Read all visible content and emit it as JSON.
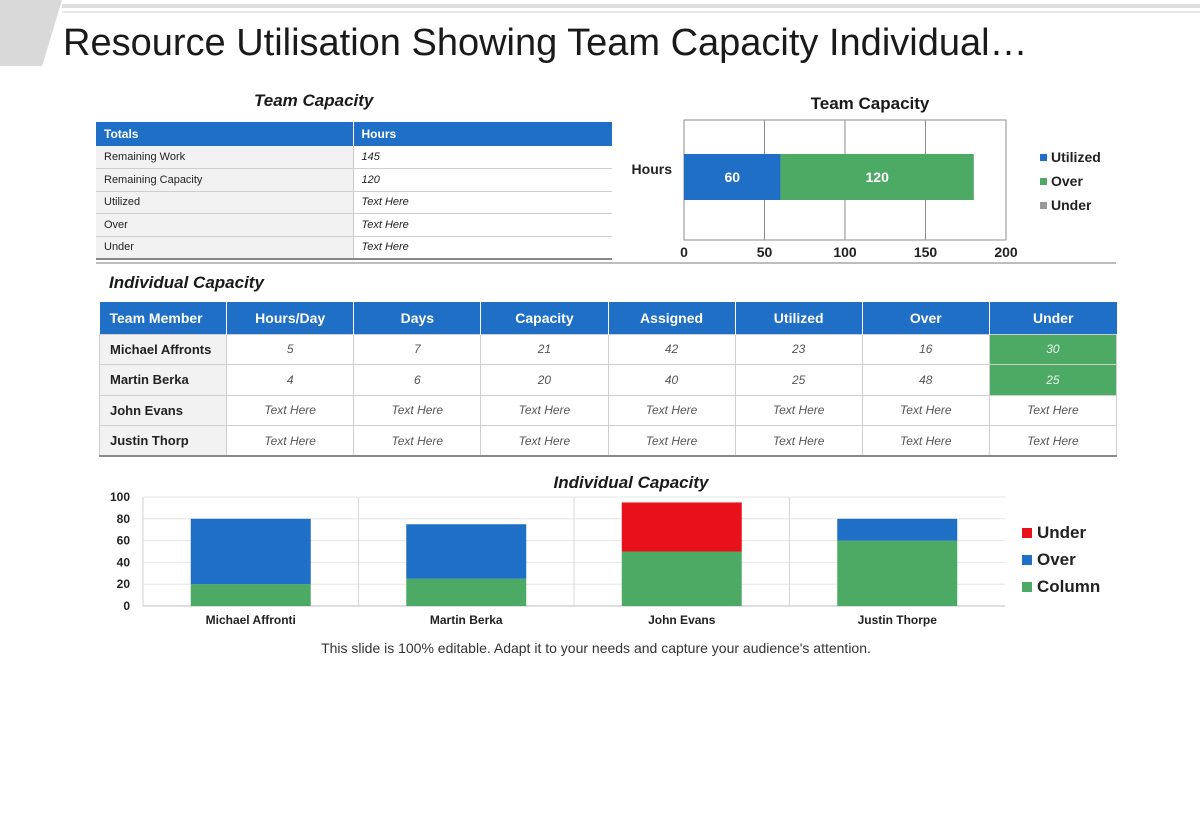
{
  "title": "Resource Utilisation Showing Team Capacity Individual…",
  "caption": "This slide is 100% editable. Adapt it to your needs and capture your audience's attention.",
  "colors": {
    "blue": "#1f6fc7",
    "green": "#4daa65",
    "red": "#e8101a",
    "gray": "#9a9a9a"
  },
  "totals_table": {
    "title": "Team Capacity",
    "headers": [
      "Totals",
      "Hours"
    ],
    "rows": [
      [
        "Remaining Work",
        "145"
      ],
      [
        "Remaining Capacity",
        "120"
      ],
      [
        "Utilized",
        "Text Here"
      ],
      [
        "Over",
        "Text Here"
      ],
      [
        "Under",
        "Text Here"
      ]
    ]
  },
  "individual_table": {
    "title": "Individual Capacity",
    "headers": [
      "Team Member",
      "Hours/Day",
      "Days",
      "Capacity",
      "Assigned",
      "Utilized",
      "Over",
      "Under"
    ],
    "rows": [
      [
        "Michael Affronts",
        "5",
        "7",
        "21",
        "42",
        "23",
        "16",
        "30"
      ],
      [
        "Martin Berka",
        "4",
        "6",
        "20",
        "40",
        "25",
        "48",
        "25"
      ],
      [
        "John Evans",
        "Text Here",
        "Text Here",
        "Text Here",
        "Text Here",
        "Text Here",
        "Text Here",
        "Text Here"
      ],
      [
        "Justin Thorp",
        "Text Here",
        "Text Here",
        "Text Here",
        "Text Here",
        "Text Here",
        "Text Here",
        "Text Here"
      ]
    ]
  },
  "chart_data": [
    {
      "type": "bar",
      "orientation": "horizontal",
      "stacked": true,
      "title": "Team Capacity",
      "categories": [
        "Hours"
      ],
      "series": [
        {
          "name": "Utilized",
          "values": [
            60
          ],
          "color": "#1f6fc7",
          "data_labels": [
            "60"
          ]
        },
        {
          "name": "Over",
          "values": [
            120
          ],
          "color": "#4daa65",
          "data_labels": [
            "120"
          ]
        },
        {
          "name": "Under",
          "values": [
            0
          ],
          "color": "#9a9a9a",
          "data_labels": []
        }
      ],
      "xlim": [
        0,
        200
      ],
      "xticks": [
        "0",
        "50",
        "100",
        "150",
        "200"
      ],
      "grid": true,
      "legend": "right"
    },
    {
      "type": "bar",
      "stacked": true,
      "title": "Individual Capacity",
      "categories": [
        "Michael Affronti",
        "Martin Berka",
        "John Evans",
        "Justin Thorpe"
      ],
      "series": [
        {
          "name": "Column",
          "values": [
            20,
            25,
            50,
            60
          ],
          "color": "#4daa65"
        },
        {
          "name": "Over",
          "values": [
            60,
            50,
            0,
            20
          ],
          "color": "#1f6fc7"
        },
        {
          "name": "Under",
          "values": [
            0,
            0,
            45,
            0
          ],
          "color": "#e8101a"
        }
      ],
      "ylim": [
        0,
        100
      ],
      "yticks": [
        "0",
        "20",
        "40",
        "60",
        "80",
        "100"
      ],
      "grid": true,
      "legend": "right",
      "legend_order": [
        "Under",
        "Over",
        "Column"
      ]
    }
  ]
}
